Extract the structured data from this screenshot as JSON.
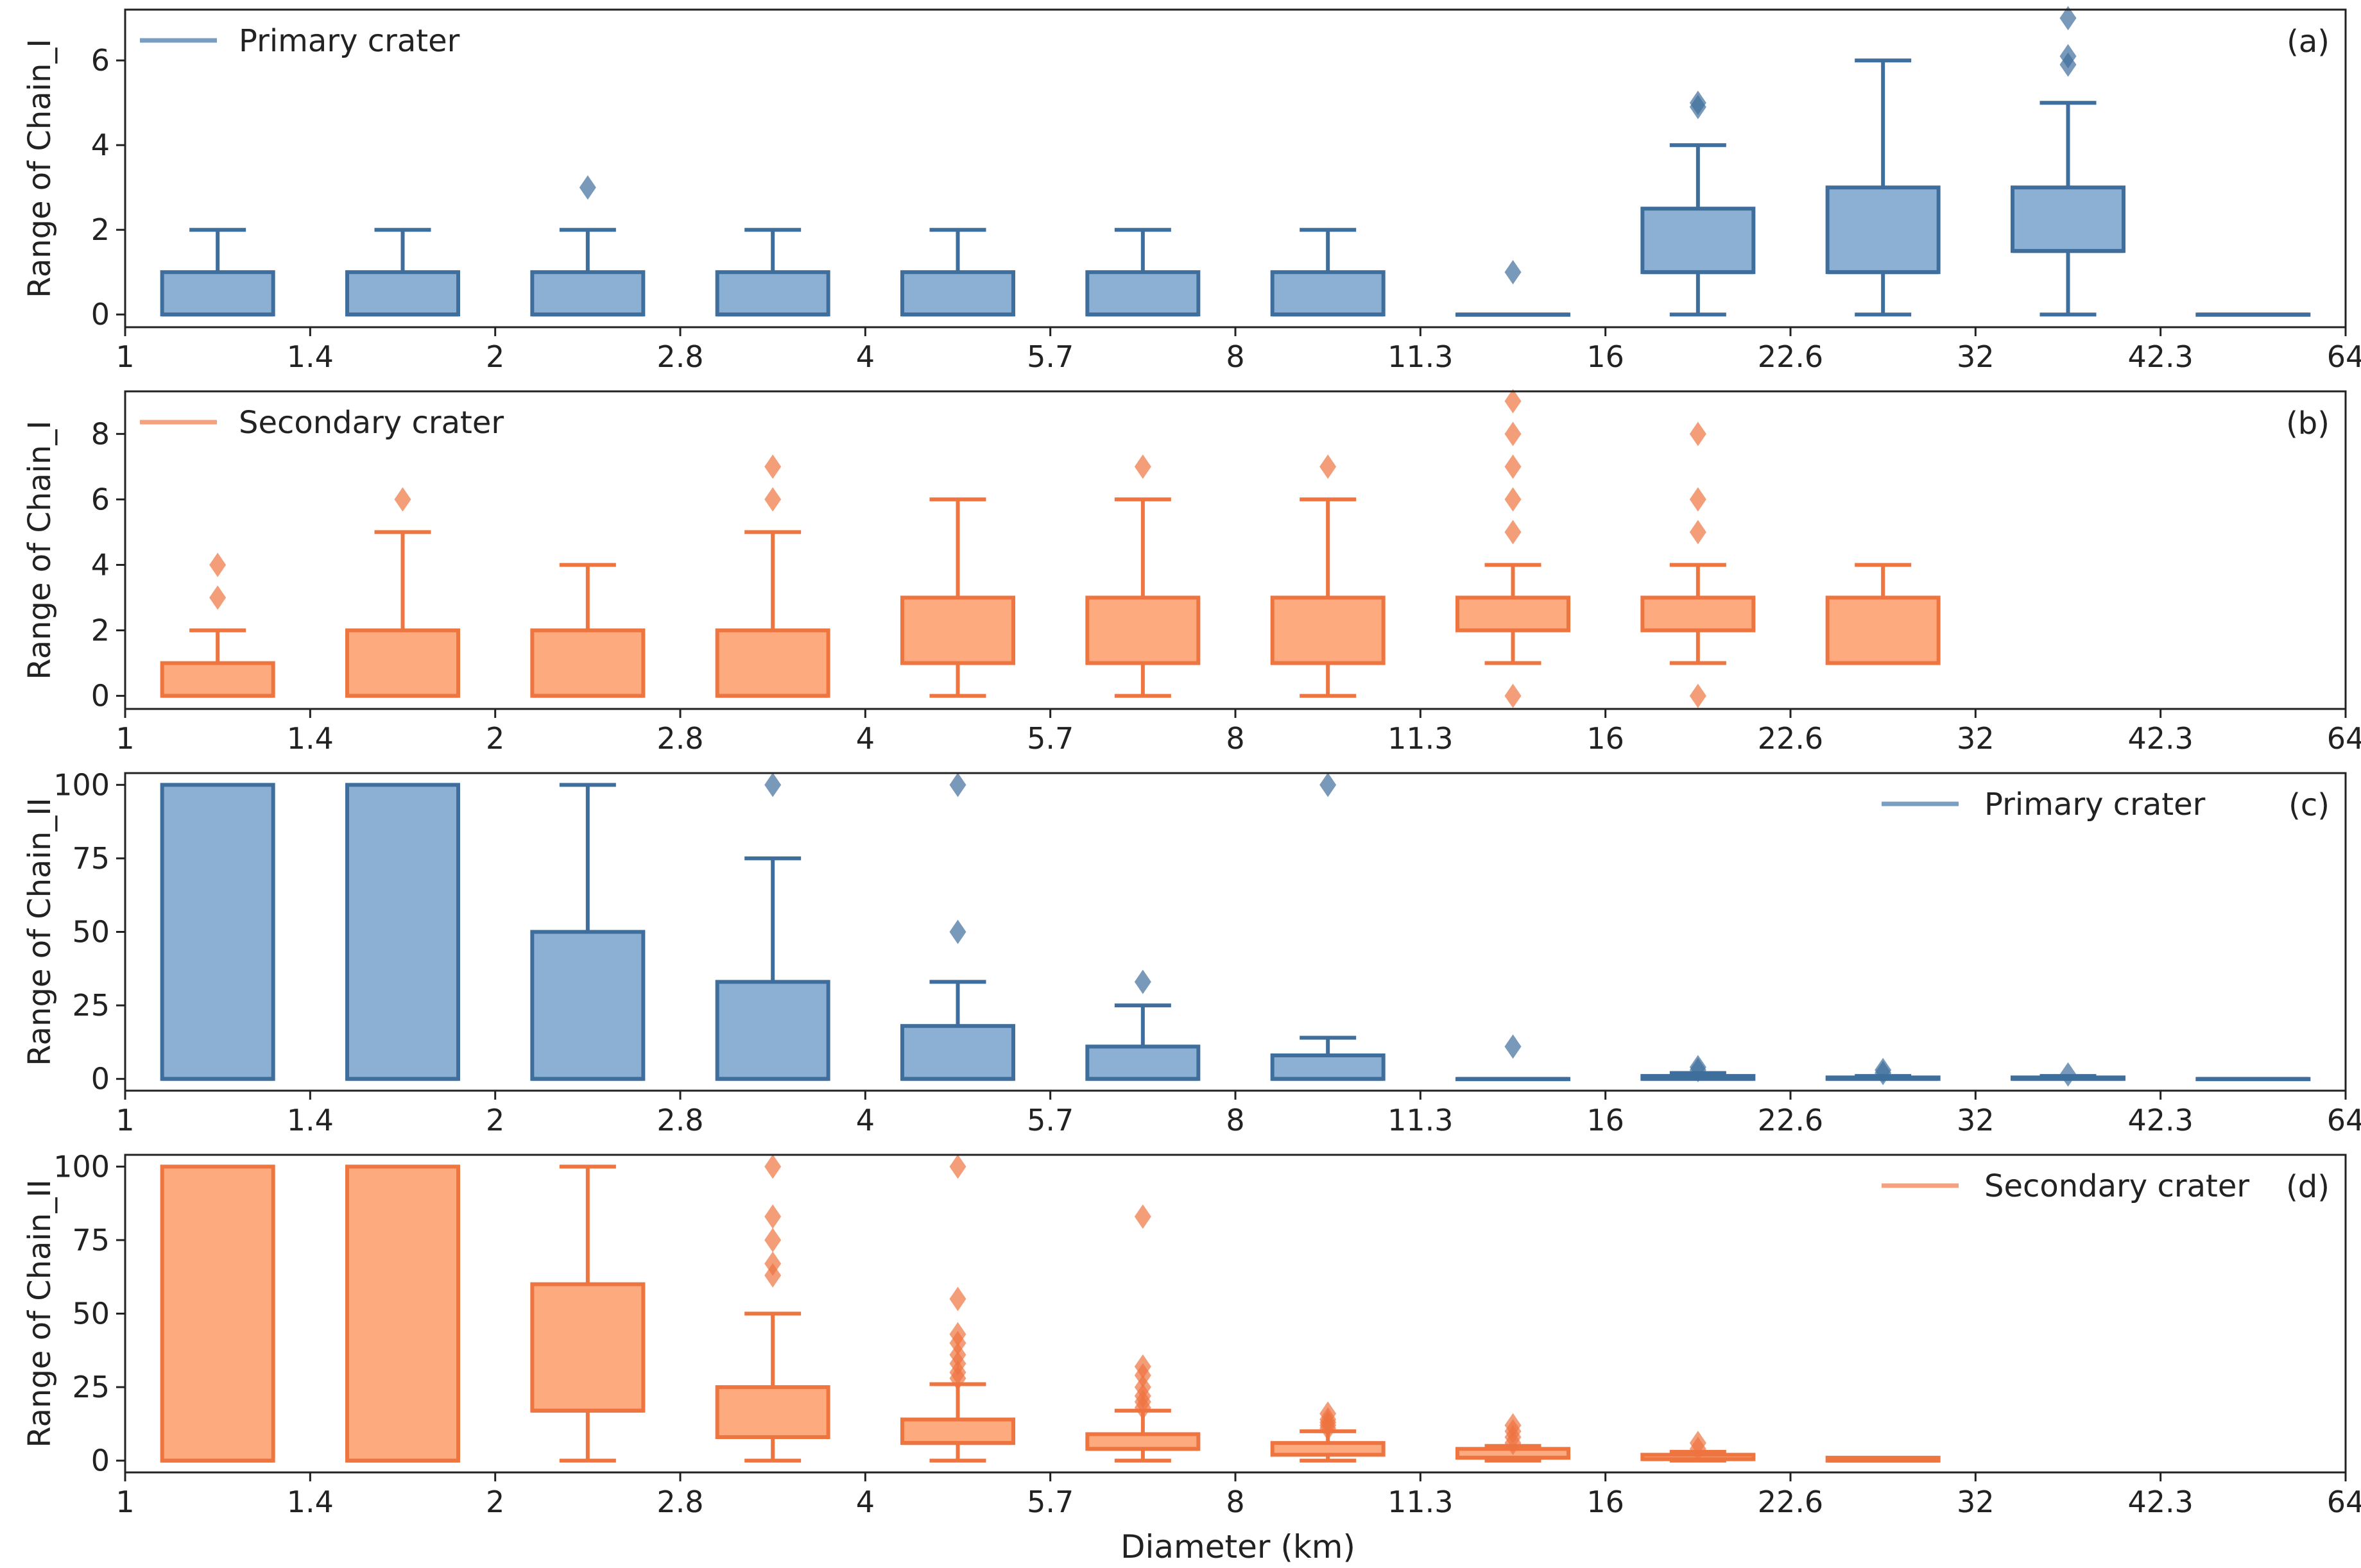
{
  "figure": {
    "xlabel": "Diameter (km)",
    "colors": {
      "primary_fill": "#8bb0d4",
      "primary_edge": "#3f6e9c",
      "primary_legend": "#7a9dc2",
      "secondary_fill": "#fcaa7e",
      "secondary_edge": "#ee7440",
      "secondary_legend": "#f6a07e",
      "axis": "#222222"
    }
  },
  "chart_data": [
    {
      "type": "box",
      "panel": "(a)",
      "legend": "Primary crater",
      "legend_position": "top-left",
      "series": "primary",
      "ylabel": "Range of Chain_I",
      "ylim": [
        -0.3,
        7.2
      ],
      "yticks": [
        "0",
        "2",
        "4",
        "6"
      ],
      "x_ticks": [
        "1",
        "1.4",
        "2",
        "2.8",
        "4",
        "5.7",
        "8",
        "11.3",
        "16",
        "22.6",
        "32",
        "42.3",
        "64"
      ],
      "boxes": [
        {
          "bin": "1-1.4",
          "q1": 0,
          "median": 0,
          "q3": 1,
          "whisker_low": 0,
          "whisker_high": 2,
          "outliers": []
        },
        {
          "bin": "1.4-2",
          "q1": 0,
          "median": 0,
          "q3": 1,
          "whisker_low": 0,
          "whisker_high": 2,
          "outliers": []
        },
        {
          "bin": "2-2.8",
          "q1": 0,
          "median": 0,
          "q3": 1,
          "whisker_low": 0,
          "whisker_high": 2,
          "outliers": [
            3
          ]
        },
        {
          "bin": "2.8-4",
          "q1": 0,
          "median": 0,
          "q3": 1,
          "whisker_low": 0,
          "whisker_high": 2,
          "outliers": []
        },
        {
          "bin": "4-5.7",
          "q1": 0,
          "median": 0,
          "q3": 1,
          "whisker_low": 0,
          "whisker_high": 2,
          "outliers": []
        },
        {
          "bin": "5.7-8",
          "q1": 0,
          "median": 0,
          "q3": 1,
          "whisker_low": 0,
          "whisker_high": 2,
          "outliers": []
        },
        {
          "bin": "8-11.3",
          "q1": 0,
          "median": 0,
          "q3": 1,
          "whisker_low": 0,
          "whisker_high": 2,
          "outliers": []
        },
        {
          "bin": "11.3-16",
          "q1": 0,
          "median": 0,
          "q3": 0,
          "whisker_low": 0,
          "whisker_high": 0,
          "outliers": [
            1
          ]
        },
        {
          "bin": "16-22.6",
          "q1": 1,
          "median": 1,
          "q3": 2.5,
          "whisker_low": 0,
          "whisker_high": 4,
          "outliers": [
            4.9,
            5
          ]
        },
        {
          "bin": "22.6-32",
          "q1": 1,
          "median": 1,
          "q3": 3,
          "whisker_low": 0,
          "whisker_high": 6,
          "outliers": []
        },
        {
          "bin": "32-42.3",
          "q1": 1.5,
          "median": 1.5,
          "q3": 3,
          "whisker_low": 0,
          "whisker_high": 5,
          "outliers": [
            5.9,
            6.1,
            7
          ]
        },
        {
          "bin": "42.3-64",
          "q1": 0,
          "median": 0,
          "q3": 0,
          "whisker_low": 0,
          "whisker_high": 0,
          "outliers": []
        }
      ]
    },
    {
      "type": "box",
      "panel": "(b)",
      "legend": "Secondary crater",
      "legend_position": "top-left",
      "series": "secondary",
      "ylabel": "Range of Chain_I",
      "ylim": [
        -0.4,
        9.3
      ],
      "yticks": [
        "0",
        "2",
        "4",
        "6",
        "8"
      ],
      "x_ticks": [
        "1",
        "1.4",
        "2",
        "2.8",
        "4",
        "5.7",
        "8",
        "11.3",
        "16",
        "22.6",
        "32",
        "42.3",
        "64"
      ],
      "boxes": [
        {
          "bin": "1-1.4",
          "q1": 0,
          "median": 0,
          "q3": 1,
          "whisker_low": 0,
          "whisker_high": 2,
          "outliers": [
            3,
            4
          ]
        },
        {
          "bin": "1.4-2",
          "q1": 0,
          "median": 0,
          "q3": 2,
          "whisker_low": 0,
          "whisker_high": 5,
          "outliers": [
            6
          ]
        },
        {
          "bin": "2-2.8",
          "q1": 0,
          "median": 0,
          "q3": 2,
          "whisker_low": 0,
          "whisker_high": 4,
          "outliers": []
        },
        {
          "bin": "2.8-4",
          "q1": 0,
          "median": 0,
          "q3": 2,
          "whisker_low": 0,
          "whisker_high": 5,
          "outliers": [
            6,
            7
          ]
        },
        {
          "bin": "4-5.7",
          "q1": 1,
          "median": 1,
          "q3": 3,
          "whisker_low": 0,
          "whisker_high": 6,
          "outliers": []
        },
        {
          "bin": "5.7-8",
          "q1": 1,
          "median": 1,
          "q3": 3,
          "whisker_low": 0,
          "whisker_high": 6,
          "outliers": [
            7
          ]
        },
        {
          "bin": "8-11.3",
          "q1": 1,
          "median": 1,
          "q3": 3,
          "whisker_low": 0,
          "whisker_high": 6,
          "outliers": [
            7
          ]
        },
        {
          "bin": "11.3-16",
          "q1": 2,
          "median": 2,
          "q3": 3,
          "whisker_low": 1,
          "whisker_high": 4,
          "outliers": [
            0,
            5,
            6,
            7,
            8,
            9
          ]
        },
        {
          "bin": "16-22.6",
          "q1": 2,
          "median": 2,
          "q3": 3,
          "whisker_low": 1,
          "whisker_high": 4,
          "outliers": [
            0,
            5,
            6,
            8
          ]
        },
        {
          "bin": "22.6-32",
          "q1": 1,
          "median": 1,
          "q3": 3,
          "whisker_low": 1,
          "whisker_high": 4,
          "outliers": []
        }
      ]
    },
    {
      "type": "box",
      "panel": "(c)",
      "legend": "Primary crater",
      "legend_position": "top-right",
      "series": "primary",
      "ylabel": "Range of Chain_II",
      "ylim": [
        -4,
        104
      ],
      "yticks": [
        "0",
        "25",
        "50",
        "75",
        "100"
      ],
      "x_ticks": [
        "1",
        "1.4",
        "2",
        "2.8",
        "4",
        "5.7",
        "8",
        "11.3",
        "16",
        "22.6",
        "32",
        "42.3",
        "64"
      ],
      "boxes": [
        {
          "bin": "1-1.4",
          "q1": 0,
          "median": 0,
          "q3": 100,
          "whisker_low": 0,
          "whisker_high": 100,
          "outliers": []
        },
        {
          "bin": "1.4-2",
          "q1": 0,
          "median": 0,
          "q3": 100,
          "whisker_low": 0,
          "whisker_high": 100,
          "outliers": []
        },
        {
          "bin": "2-2.8",
          "q1": 0,
          "median": 0,
          "q3": 50,
          "whisker_low": 0,
          "whisker_high": 100,
          "outliers": []
        },
        {
          "bin": "2.8-4",
          "q1": 0,
          "median": 0,
          "q3": 33,
          "whisker_low": 0,
          "whisker_high": 75,
          "outliers": [
            100
          ]
        },
        {
          "bin": "4-5.7",
          "q1": 0,
          "median": 0,
          "q3": 18,
          "whisker_low": 0,
          "whisker_high": 33,
          "outliers": [
            50,
            100
          ]
        },
        {
          "bin": "5.7-8",
          "q1": 0,
          "median": 0,
          "q3": 11,
          "whisker_low": 0,
          "whisker_high": 25,
          "outliers": [
            33
          ]
        },
        {
          "bin": "8-11.3",
          "q1": 0,
          "median": 0,
          "q3": 8,
          "whisker_low": 0,
          "whisker_high": 14,
          "outliers": [
            100
          ]
        },
        {
          "bin": "11.3-16",
          "q1": 0,
          "median": 0,
          "q3": 0,
          "whisker_low": 0,
          "whisker_high": 0,
          "outliers": [
            11
          ]
        },
        {
          "bin": "16-22.6",
          "q1": 0,
          "median": 0,
          "q3": 1,
          "whisker_low": 0,
          "whisker_high": 2,
          "outliers": [
            3,
            4
          ]
        },
        {
          "bin": "22.6-32",
          "q1": 0,
          "median": 0,
          "q3": 0.5,
          "whisker_low": 0,
          "whisker_high": 1,
          "outliers": [
            2,
            3
          ]
        },
        {
          "bin": "32-42.3",
          "q1": 0,
          "median": 0,
          "q3": 0.5,
          "whisker_low": 0,
          "whisker_high": 1,
          "outliers": [
            1.5
          ]
        },
        {
          "bin": "42.3-64",
          "q1": 0,
          "median": 0,
          "q3": 0,
          "whisker_low": 0,
          "whisker_high": 0,
          "outliers": []
        }
      ]
    },
    {
      "type": "box",
      "panel": "(d)",
      "legend": "Secondary crater",
      "legend_position": "top-right",
      "series": "secondary",
      "ylabel": "Range of Chain_II",
      "ylim": [
        -4,
        104
      ],
      "yticks": [
        "0",
        "25",
        "50",
        "75",
        "100"
      ],
      "x_ticks": [
        "1",
        "1.4",
        "2",
        "2.8",
        "4",
        "5.7",
        "8",
        "11.3",
        "16",
        "22.6",
        "32",
        "42.3",
        "64"
      ],
      "boxes": [
        {
          "bin": "1-1.4",
          "q1": 0,
          "median": 0,
          "q3": 100,
          "whisker_low": 0,
          "whisker_high": 100,
          "outliers": []
        },
        {
          "bin": "1.4-2",
          "q1": 0,
          "median": 0,
          "q3": 100,
          "whisker_low": 0,
          "whisker_high": 100,
          "outliers": []
        },
        {
          "bin": "2-2.8",
          "q1": 17,
          "median": 17,
          "q3": 60,
          "whisker_low": 0,
          "whisker_high": 100,
          "outliers": []
        },
        {
          "bin": "2.8-4",
          "q1": 8,
          "median": 8,
          "q3": 25,
          "whisker_low": 0,
          "whisker_high": 50,
          "outliers": [
            63,
            67,
            75,
            83,
            100
          ]
        },
        {
          "bin": "4-5.7",
          "q1": 6,
          "median": 6,
          "q3": 14,
          "whisker_low": 0,
          "whisker_high": 26,
          "outliers": [
            28,
            30,
            33,
            36,
            40,
            43,
            55,
            100
          ]
        },
        {
          "bin": "5.7-8",
          "q1": 4,
          "median": 4,
          "q3": 9,
          "whisker_low": 0,
          "whisker_high": 17,
          "outliers": [
            18,
            20,
            22,
            25,
            29,
            32,
            83
          ]
        },
        {
          "bin": "8-11.3",
          "q1": 2,
          "median": 2,
          "q3": 6,
          "whisker_low": 0,
          "whisker_high": 10,
          "outliers": [
            11,
            12,
            13,
            14,
            16
          ]
        },
        {
          "bin": "11.3-16",
          "q1": 1,
          "median": 1,
          "q3": 4,
          "whisker_low": 0,
          "whisker_high": 5,
          "outliers": [
            6,
            8,
            10,
            12
          ]
        },
        {
          "bin": "16-22.6",
          "q1": 0.5,
          "median": 0.5,
          "q3": 2,
          "whisker_low": 0,
          "whisker_high": 3,
          "outliers": [
            4,
            6
          ]
        },
        {
          "bin": "22.6-32",
          "q1": 0,
          "median": 0,
          "q3": 1,
          "whisker_low": 0,
          "whisker_high": 1,
          "outliers": []
        }
      ]
    }
  ]
}
